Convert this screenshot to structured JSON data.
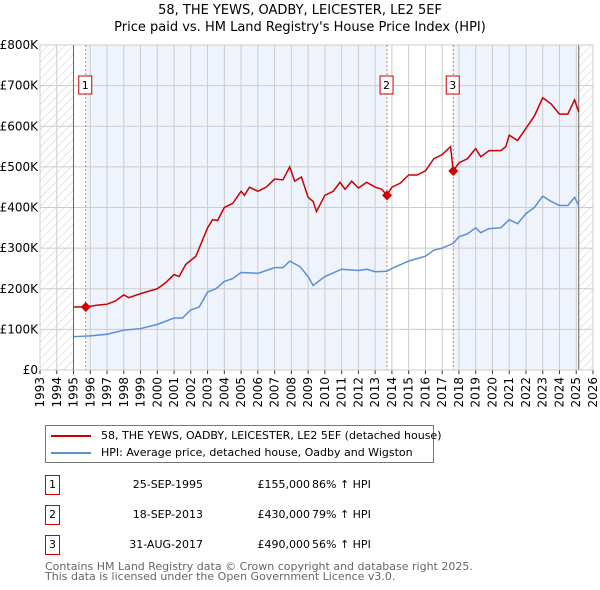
{
  "chart_data": {
    "type": "line",
    "title": "58, THE YEWS, OADBY, LEICESTER, LE2 5EF",
    "subtitle": "Price paid vs. HM Land Registry's House Price Index (HPI)",
    "xlim": [
      1993,
      2026
    ],
    "ylim": [
      0,
      800000
    ],
    "x_ticks": [
      "1993",
      "1994",
      "1995",
      "1996",
      "1997",
      "1998",
      "1999",
      "2000",
      "2001",
      "2002",
      "2003",
      "2004",
      "2005",
      "2006",
      "2007",
      "2008",
      "2009",
      "2010",
      "2011",
      "2012",
      "2013",
      "2014",
      "2015",
      "2016",
      "2017",
      "2018",
      "2019",
      "2020",
      "2021",
      "2022",
      "2023",
      "2024",
      "2025",
      "2026"
    ],
    "y_ticks": [
      {
        "v": 0,
        "label": "£0"
      },
      {
        "v": 100000,
        "label": "£100K"
      },
      {
        "v": 200000,
        "label": "£200K"
      },
      {
        "v": 300000,
        "label": "£300K"
      },
      {
        "v": 400000,
        "label": "£400K"
      },
      {
        "v": 500000,
        "label": "£500K"
      },
      {
        "v": 600000,
        "label": "£600K"
      },
      {
        "v": 700000,
        "label": "£700K"
      },
      {
        "v": 800000,
        "label": "£800K"
      }
    ],
    "grid": true,
    "series": [
      {
        "name": "58, THE YEWS, OADBY, LEICESTER, LE2 5EF (detached house)",
        "color": "#cc0000",
        "points": [
          [
            1995.0,
            155
          ],
          [
            1995.7,
            155
          ],
          [
            1996.5,
            160
          ],
          [
            1997,
            162
          ],
          [
            1997.5,
            170
          ],
          [
            1998,
            185
          ],
          [
            1998.3,
            178
          ],
          [
            1999,
            188
          ],
          [
            2000,
            200
          ],
          [
            2000.5,
            215
          ],
          [
            2001,
            235
          ],
          [
            2001.3,
            230
          ],
          [
            2001.7,
            260
          ],
          [
            2002.3,
            280
          ],
          [
            2002.5,
            300
          ],
          [
            2003,
            350
          ],
          [
            2003.3,
            370
          ],
          [
            2003.6,
            368
          ],
          [
            2004,
            400
          ],
          [
            2004.5,
            410
          ],
          [
            2005,
            440
          ],
          [
            2005.2,
            430
          ],
          [
            2005.5,
            450
          ],
          [
            2006,
            440
          ],
          [
            2006.5,
            450
          ],
          [
            2007,
            470
          ],
          [
            2007.5,
            468
          ],
          [
            2007.9,
            500
          ],
          [
            2008.2,
            465
          ],
          [
            2008.6,
            475
          ],
          [
            2009,
            425
          ],
          [
            2009.3,
            415
          ],
          [
            2009.5,
            390
          ],
          [
            2010,
            430
          ],
          [
            2010.5,
            440
          ],
          [
            2010.9,
            462
          ],
          [
            2011.2,
            445
          ],
          [
            2011.6,
            465
          ],
          [
            2012,
            448
          ],
          [
            2012.5,
            462
          ],
          [
            2013,
            450
          ],
          [
            2013.4,
            445
          ],
          [
            2013.7,
            430
          ],
          [
            2014,
            450
          ],
          [
            2014.5,
            460
          ],
          [
            2015,
            480
          ],
          [
            2015.5,
            480
          ],
          [
            2016,
            490
          ],
          [
            2016.5,
            520
          ],
          [
            2017,
            530
          ],
          [
            2017.5,
            550
          ],
          [
            2017.66,
            490
          ],
          [
            2018,
            510
          ],
          [
            2018.5,
            520
          ],
          [
            2019,
            545
          ],
          [
            2019.3,
            525
          ],
          [
            2019.8,
            540
          ],
          [
            2020.5,
            540
          ],
          [
            2020.8,
            550
          ],
          [
            2021,
            578
          ],
          [
            2021.5,
            565
          ],
          [
            2022,
            595
          ],
          [
            2022.5,
            625
          ],
          [
            2023,
            670
          ],
          [
            2023.5,
            655
          ],
          [
            2024,
            630
          ],
          [
            2024.5,
            630
          ],
          [
            2024.9,
            665
          ],
          [
            2025.15,
            635
          ]
        ]
      },
      {
        "name": "HPI: Average price, detached house, Oadby and Wigston",
        "color": "#5b8fd4",
        "points": [
          [
            1995.0,
            82
          ],
          [
            1996,
            84
          ],
          [
            1997,
            88
          ],
          [
            1998,
            98
          ],
          [
            1999,
            102
          ],
          [
            2000,
            112
          ],
          [
            2001,
            128
          ],
          [
            2001.5,
            128
          ],
          [
            2002,
            148
          ],
          [
            2002.5,
            155
          ],
          [
            2003,
            192
          ],
          [
            2003.5,
            200
          ],
          [
            2004,
            218
          ],
          [
            2004.5,
            225
          ],
          [
            2005,
            240
          ],
          [
            2006,
            238
          ],
          [
            2007,
            252
          ],
          [
            2007.5,
            252
          ],
          [
            2007.9,
            268
          ],
          [
            2008.5,
            255
          ],
          [
            2009,
            230
          ],
          [
            2009.3,
            208
          ],
          [
            2010,
            230
          ],
          [
            2011,
            248
          ],
          [
            2012,
            245
          ],
          [
            2012.5,
            248
          ],
          [
            2013,
            242
          ],
          [
            2013.7,
            243
          ],
          [
            2014,
            250
          ],
          [
            2015,
            268
          ],
          [
            2016,
            280
          ],
          [
            2016.5,
            295
          ],
          [
            2017,
            300
          ],
          [
            2017.66,
            312
          ],
          [
            2018,
            328
          ],
          [
            2018.5,
            335
          ],
          [
            2019,
            350
          ],
          [
            2019.3,
            338
          ],
          [
            2019.8,
            348
          ],
          [
            2020.5,
            350
          ],
          [
            2021,
            370
          ],
          [
            2021.5,
            360
          ],
          [
            2022,
            385
          ],
          [
            2022.5,
            400
          ],
          [
            2023,
            428
          ],
          [
            2023.5,
            415
          ],
          [
            2024,
            405
          ],
          [
            2024.5,
            405
          ],
          [
            2024.9,
            425
          ],
          [
            2025.15,
            405
          ]
        ]
      }
    ],
    "sales": [
      {
        "label": "1",
        "x": 1995.73,
        "value": 155000,
        "date": "25-SEP-1995",
        "price": "£155,000",
        "hpi": "86% ↑ HPI"
      },
      {
        "label": "2",
        "x": 2013.71,
        "value": 430000,
        "date": "18-SEP-2013",
        "price": "£430,000",
        "hpi": "79% ↑ HPI"
      },
      {
        "label": "3",
        "x": 2017.66,
        "value": 490000,
        "date": "31-AUG-2017",
        "price": "£490,000",
        "hpi": "56% ↑ HPI"
      }
    ],
    "data_range": [
      1995,
      2025.15
    ]
  },
  "footer": [
    "Contains HM Land Registry data © Crown copyright and database right 2025.",
    "This data is licensed under the Open Government Licence v3.0."
  ]
}
